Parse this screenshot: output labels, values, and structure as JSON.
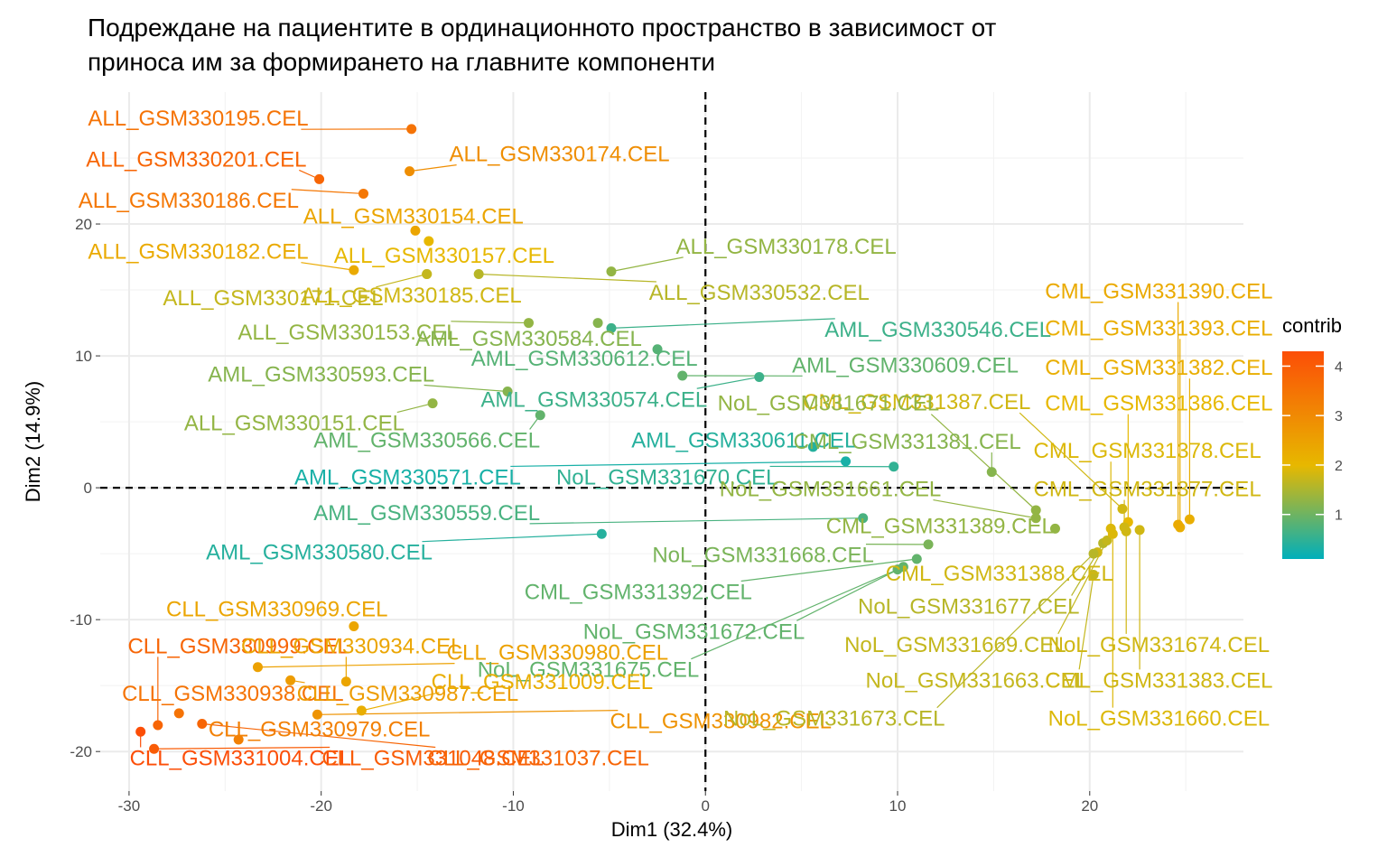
{
  "chart_data": {
    "type": "scatter",
    "title": [
      "Подреждане на пациентите в ординационното пространство в зависимост от",
      "приноса им за формирането на главните компоненти"
    ],
    "xlabel": "Dim1 (32.4%)",
    "ylabel": "Dim2 (14.9%)",
    "xlim": [
      -31.5,
      28
    ],
    "ylim": [
      -23,
      30
    ],
    "x_ticks": [
      -30,
      -20,
      -10,
      0,
      10,
      20
    ],
    "y_ticks": [
      -20,
      -10,
      0,
      10,
      20
    ],
    "x_tick_labels": [
      "-30",
      "-20",
      "-10",
      "0",
      "10",
      "20"
    ],
    "y_tick_labels": [
      "-20",
      "-10",
      "0",
      "10",
      "20"
    ],
    "reference_lines": {
      "x": 0,
      "y": 0,
      "style": "dashed"
    },
    "legend": {
      "title": "contrib",
      "position": "right",
      "type": "gradient",
      "range": [
        0.1,
        4.3
      ],
      "ticks": [
        1,
        2,
        3,
        4
      ],
      "tick_labels": [
        "1",
        "2",
        "3",
        "4"
      ],
      "colors": [
        "#00AFBB",
        "#E7B800",
        "#FC4E07"
      ]
    },
    "points": [
      {
        "label": "ALL_GSM330195.CEL",
        "x": -15.3,
        "y": 27.2,
        "contrib": 3.5,
        "lx": -26.4,
        "ly": 28.0
      },
      {
        "label": "ALL_GSM330174.CEL",
        "x": -15.4,
        "y": 24.0,
        "contrib": 2.9,
        "lx": -7.6,
        "ly": 25.3
      },
      {
        "label": "ALL_GSM330201.CEL",
        "x": -20.1,
        "y": 23.4,
        "contrib": 3.8,
        "lx": -26.5,
        "ly": 24.9
      },
      {
        "label": "ALL_GSM330186.CEL",
        "x": -17.8,
        "y": 22.3,
        "contrib": 3.4,
        "lx": -26.9,
        "ly": 21.8
      },
      {
        "label": "ALL_GSM330154.CEL",
        "x": -15.1,
        "y": 19.5,
        "contrib": 2.4,
        "lx": -15.2,
        "ly": 20.6
      },
      {
        "label": "ALL_GSM330182.CEL",
        "x": -18.3,
        "y": 16.5,
        "contrib": 2.3,
        "lx": -26.4,
        "ly": 17.9
      },
      {
        "label": "ALL_GSM330157.CEL",
        "x": -14.4,
        "y": 18.7,
        "contrib": 2.0,
        "lx": -13.6,
        "ly": 17.6
      },
      {
        "label": "ALL_GSM330178.CEL",
        "x": -4.9,
        "y": 16.4,
        "contrib": 1.3,
        "lx": 4.2,
        "ly": 18.3
      },
      {
        "label": "ALL_GSM330185.CEL",
        "x": -14.5,
        "y": 16.2,
        "contrib": 1.8,
        "lx": -15.3,
        "ly": 14.6
      },
      {
        "label": "ALL_GSM330532.CEL",
        "x": -11.8,
        "y": 16.2,
        "contrib": 1.6,
        "lx": 2.8,
        "ly": 14.8
      },
      {
        "label": "ALL_GSM330171.CEL",
        "x": -14.5,
        "y": 16.2,
        "contrib": 1.7,
        "lx": -22.5,
        "ly": 14.4
      },
      {
        "label": "ALL_GSM330153.CEL",
        "x": -9.2,
        "y": 12.5,
        "contrib": 1.3,
        "lx": -18.6,
        "ly": 11.8
      },
      {
        "label": "AML_GSM330584.CEL",
        "x": -5.6,
        "y": 12.5,
        "contrib": 1.2,
        "lx": -9.2,
        "ly": 11.3
      },
      {
        "label": "AML_GSM330546.CEL",
        "x": -4.9,
        "y": 12.1,
        "contrib": 0.6,
        "lx": 12.1,
        "ly": 12.0
      },
      {
        "label": "CML_GSM331393.CEL",
        "x": 24.7,
        "y": -3.0,
        "contrib": 2.2,
        "lx": 23.6,
        "ly": 12.1
      },
      {
        "label": "CML_GSM331390.CEL",
        "x": 24.6,
        "y": -2.8,
        "contrib": 2.3,
        "lx": 23.6,
        "ly": 14.9
      },
      {
        "label": "AML_GSM330612.CEL",
        "x": -2.5,
        "y": 10.5,
        "contrib": 0.8,
        "lx": -6.3,
        "ly": 9.8
      },
      {
        "label": "AML_GSM330609.CEL",
        "x": -1.2,
        "y": 8.5,
        "contrib": 0.9,
        "lx": 10.4,
        "ly": 9.3
      },
      {
        "label": "CML_GSM331382.CEL",
        "x": 25.2,
        "y": -2.4,
        "contrib": 2.2,
        "lx": 23.6,
        "ly": 9.1
      },
      {
        "label": "AML_GSM330593.CEL",
        "x": -10.3,
        "y": 7.3,
        "contrib": 1.2,
        "lx": -20.0,
        "ly": 8.6
      },
      {
        "label": "AML_GSM330574.CEL",
        "x": 2.8,
        "y": 8.4,
        "contrib": 0.6,
        "lx": -5.8,
        "ly": 6.7
      },
      {
        "label": "CML_GSM331387.CEL",
        "x": 21.7,
        "y": -1.6,
        "contrib": 1.8,
        "lx": 11.0,
        "ly": 6.5
      },
      {
        "label": "NoL_GSM331671.CEL",
        "x": 17.2,
        "y": -1.7,
        "contrib": 1.3,
        "lx": 6.4,
        "ly": 6.4
      },
      {
        "label": "CML_GSM331386.CEL",
        "x": 22.0,
        "y": -2.6,
        "contrib": 2.0,
        "lx": 23.6,
        "ly": 6.4
      },
      {
        "label": "ALL_GSM330151.CEL",
        "x": -14.2,
        "y": 6.4,
        "contrib": 1.3,
        "lx": -21.4,
        "ly": 4.9
      },
      {
        "label": "AML_GSM330566.CEL",
        "x": -8.6,
        "y": 5.5,
        "contrib": 0.9,
        "lx": -14.5,
        "ly": 3.6
      },
      {
        "label": "AML_GSM330611.CEL",
        "x": 5.6,
        "y": 3.1,
        "contrib": 0.4,
        "lx": 2.0,
        "ly": 3.6
      },
      {
        "label": "CML_GSM331381.CEL",
        "x": 14.9,
        "y": 1.2,
        "contrib": 1.2,
        "lx": 10.5,
        "ly": 3.5
      },
      {
        "label": "CML_GSM331378.CEL",
        "x": 21.1,
        "y": -3.1,
        "contrib": 1.9,
        "lx": 23.0,
        "ly": 2.8
      },
      {
        "label": "AML_GSM330571.CEL",
        "x": 7.3,
        "y": 2.0,
        "contrib": 0.3,
        "lx": -15.5,
        "ly": 0.8
      },
      {
        "label": "NoL_GSM331670.CEL",
        "x": 9.8,
        "y": 1.6,
        "contrib": 0.5,
        "lx": -2.0,
        "ly": 0.8
      },
      {
        "label": "NoL_GSM331661.CEL",
        "x": 17.2,
        "y": -2.3,
        "contrib": 1.3,
        "lx": 6.5,
        "ly": -0.1
      },
      {
        "label": "CML_GSM331377.CEL",
        "x": 21.8,
        "y": -3.0,
        "contrib": 1.8,
        "lx": 23.0,
        "ly": -0.1
      },
      {
        "label": "AML_GSM330559.CEL",
        "x": 8.2,
        "y": -2.3,
        "contrib": 0.7,
        "lx": -14.5,
        "ly": -1.9
      },
      {
        "label": "CML_GSM331389.CEL",
        "x": 18.2,
        "y": -3.1,
        "contrib": 1.3,
        "lx": 12.2,
        "ly": -2.9
      },
      {
        "label": "AML_GSM330580.CEL",
        "x": -5.4,
        "y": -3.5,
        "contrib": 0.4,
        "lx": -20.1,
        "ly": -4.9
      },
      {
        "label": "NoL_GSM331668.CEL",
        "x": 11.6,
        "y": -4.3,
        "contrib": 1.1,
        "lx": 3.0,
        "ly": -5.1
      },
      {
        "label": "CML_GSM331388.CEL",
        "x": 20.4,
        "y": -4.9,
        "contrib": 1.8,
        "lx": 15.3,
        "ly": -6.5
      },
      {
        "label": "CML_GSM331392.CEL",
        "x": 11.0,
        "y": -5.4,
        "contrib": 0.9,
        "lx": -3.5,
        "ly": -7.9
      },
      {
        "label": "NoL_GSM331677.CEL",
        "x": 20.7,
        "y": -4.2,
        "contrib": 1.6,
        "lx": 13.7,
        "ly": -9.0
      },
      {
        "label": "CLL_GSM330969.CEL",
        "x": -18.3,
        "y": -10.5,
        "contrib": 2.4,
        "lx": -22.3,
        "ly": -9.2
      },
      {
        "label": "NoL_GSM331672.CEL",
        "x": 10.3,
        "y": -6.0,
        "contrib": 0.9,
        "lx": -0.6,
        "ly": -10.9
      },
      {
        "label": "CLL_GSM330999.CEL",
        "x": -28.5,
        "y": -18.0,
        "contrib": 3.8,
        "lx": -24.3,
        "ly": -12.0
      },
      {
        "label": "CLL_GSM330934.CEL",
        "x": -18.7,
        "y": -14.7,
        "contrib": 2.4,
        "lx": -18.4,
        "ly": -12.0
      },
      {
        "label": "CLL_GSM330980.CEL",
        "x": -23.3,
        "y": -13.6,
        "contrib": 2.5,
        "lx": -7.7,
        "ly": -12.5
      },
      {
        "label": "NoL_GSM331669.CEL",
        "x": 20.9,
        "y": -4.0,
        "contrib": 1.7,
        "lx": 13.0,
        "ly": -11.9
      },
      {
        "label": "NoL_GSM331674.CEL",
        "x": 21.9,
        "y": -3.3,
        "contrib": 1.8,
        "lx": 23.6,
        "ly": -11.9
      },
      {
        "label": "NoL_GSM331675.CEL",
        "x": 10.0,
        "y": -6.2,
        "contrib": 0.9,
        "lx": -6.1,
        "ly": -13.8
      },
      {
        "label": "CLL_GSM330938.CEL",
        "x": -27.4,
        "y": -17.1,
        "contrib": 3.5,
        "lx": -24.6,
        "ly": -15.6
      },
      {
        "label": "CLL_GSM330987.CEL",
        "x": -21.6,
        "y": -14.6,
        "contrib": 2.6,
        "lx": -15.5,
        "ly": -15.6
      },
      {
        "label": "CLL_GSM331009.CEL",
        "x": -17.9,
        "y": -16.9,
        "contrib": 2.2,
        "lx": -8.5,
        "ly": -14.7
      },
      {
        "label": "NoL_GSM331663.CEL",
        "x": 20.2,
        "y": -6.6,
        "contrib": 1.7,
        "lx": 14.1,
        "ly": -14.6
      },
      {
        "label": "CML_GSM331383.CEL",
        "x": 22.6,
        "y": -3.2,
        "contrib": 1.8,
        "lx": 23.6,
        "ly": -14.6
      },
      {
        "label": "CLL_GSM330979.CEL",
        "x": -24.3,
        "y": -19.1,
        "contrib": 3.2,
        "lx": -20.1,
        "ly": -18.3
      },
      {
        "label": "CLL_GSM330982.CEL",
        "x": -20.2,
        "y": -17.2,
        "contrib": 2.8,
        "lx": 0.8,
        "ly": -17.7
      },
      {
        "label": "NoL_GSM331673.CEL",
        "x": 20.2,
        "y": -5.0,
        "contrib": 1.6,
        "lx": 6.7,
        "ly": -17.5
      },
      {
        "label": "NoL_GSM331660.CEL",
        "x": 21.2,
        "y": -3.5,
        "contrib": 1.9,
        "lx": 23.6,
        "ly": -17.5
      },
      {
        "label": "CLL_GSM331004.CEL",
        "x": -29.4,
        "y": -18.5,
        "contrib": 4.3,
        "lx": -24.2,
        "ly": -20.5
      },
      {
        "label": "CLL_GSM331048.CEL",
        "x": -28.7,
        "y": -19.8,
        "contrib": 4.0,
        "lx": -14.2,
        "ly": -20.5
      },
      {
        "label": "CLL_GSM331037.CEL",
        "x": -26.2,
        "y": -17.9,
        "contrib": 3.8,
        "lx": -8.7,
        "ly": -20.5
      }
    ]
  }
}
